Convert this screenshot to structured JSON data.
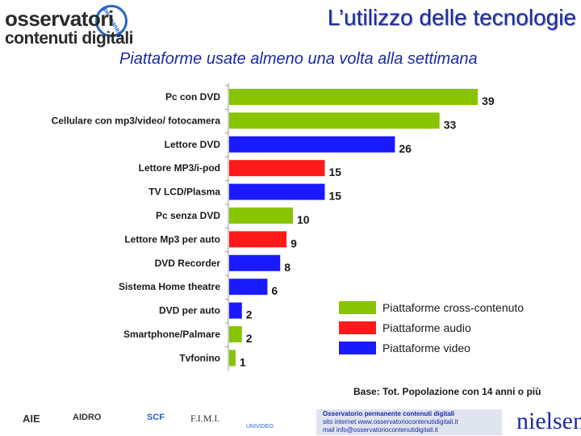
{
  "header": {
    "logo_line1": "osservatori",
    "logo_line2": "contenuti digitali",
    "logo_arc": "permanente",
    "title": "L’utilizzo delle tecnologie",
    "subtitle": "Piattaforme usate almeno una volta alla settimana"
  },
  "chart_data": {
    "type": "bar",
    "orientation": "horizontal",
    "title": "Piattaforme usate almeno una volta alla settimana",
    "categories": [
      "Pc con DVD",
      "Cellulare con mp3/video/ fotocamera",
      "Lettore DVD",
      "Lettore MP3/i-pod",
      "TV LCD/Plasma",
      "Pc senza DVD",
      "Lettore Mp3 per auto",
      "DVD Recorder",
      "Sistema Home theatre",
      "DVD per auto",
      "Smartphone/Palmare",
      "Tvfonino"
    ],
    "values": [
      39,
      33,
      26,
      15,
      15,
      10,
      9,
      8,
      6,
      2,
      2,
      1
    ],
    "groups": [
      "cross",
      "cross",
      "video",
      "audio",
      "video",
      "cross",
      "audio",
      "video",
      "video",
      "video",
      "cross",
      "cross"
    ],
    "group_colors": {
      "cross": "#88c400",
      "audio": "#ff1a1a",
      "video": "#1a1aff"
    },
    "xlim": [
      0,
      40
    ],
    "legend": [
      {
        "label": "Piattaforme cross-contenuto",
        "color": "#88c400"
      },
      {
        "label": "Piattaforme audio",
        "color": "#ff1a1a"
      },
      {
        "label": "Piattaforme video",
        "color": "#1a1aff"
      }
    ]
  },
  "note": "Base: Tot. Popolazione con 14 anni o più",
  "footer": {
    "logos": [
      "AIE",
      "AIDRO",
      "SCF",
      "F.I.M.I.",
      "UNIVIDEO"
    ],
    "box_line1": "Osservatorio permanente contenuti digitali",
    "box_line2": "sito internet www.osservatoriocontenutidigitali.it",
    "box_line3": "mail info@osservatoriocontenutidigitali.it",
    "brand": "nielsen"
  }
}
